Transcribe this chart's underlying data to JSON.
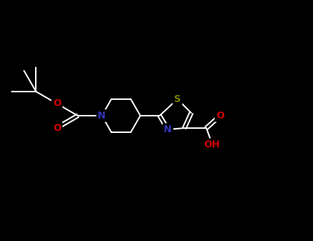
{
  "background_color": "#000000",
  "bond_color": "#ffffff",
  "atom_colors": {
    "N": "#3333bb",
    "O": "#cc0000",
    "S": "#808000",
    "C": "#ffffff",
    "H": "#ffffff"
  },
  "figsize": [
    4.55,
    3.5
  ],
  "dpi": 100
}
